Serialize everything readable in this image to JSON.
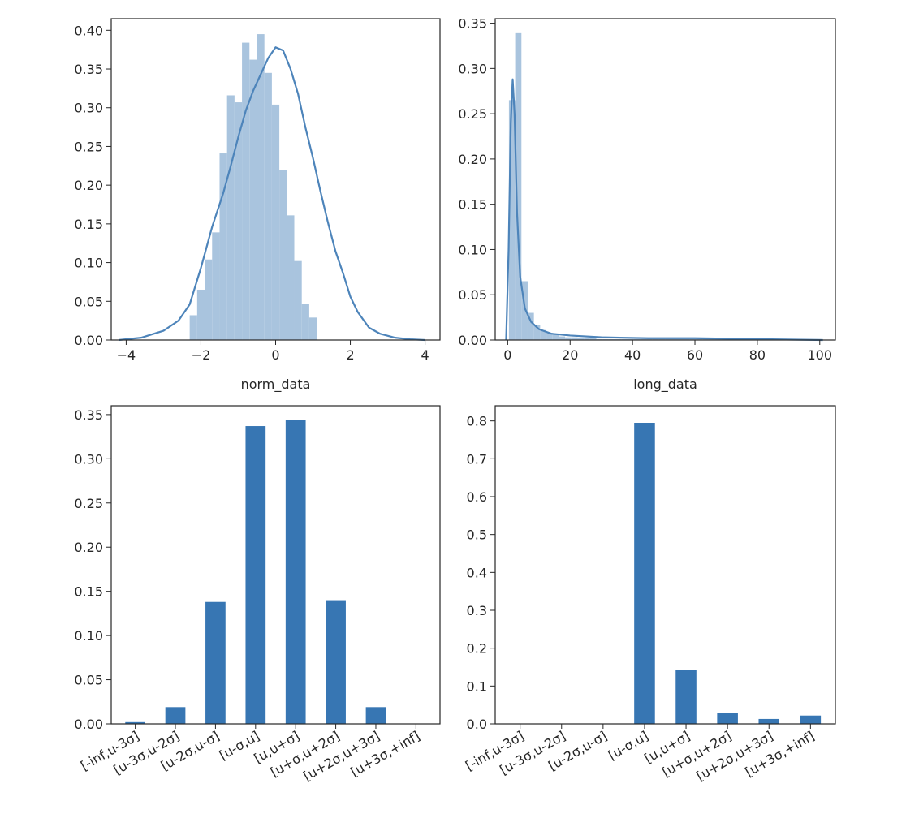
{
  "chart_data": [
    {
      "type": "histogram",
      "xlabel": "norm_data",
      "ylabel": "",
      "title": "",
      "xlim": [
        -4.4,
        4.4
      ],
      "ylim": [
        0,
        0.415
      ],
      "xticks": [
        -4,
        -2,
        0,
        2,
        4
      ],
      "xtick_labels": [
        "−4",
        "−2",
        "0",
        "2",
        "4"
      ],
      "yticks": [
        0,
        0.05,
        0.1,
        0.15,
        0.2,
        0.25,
        0.3,
        0.35,
        0.4
      ],
      "ytick_labels": [
        "0.00",
        "0.05",
        "0.10",
        "0.15",
        "0.20",
        "0.25",
        "0.30",
        "0.35",
        "0.40"
      ],
      "bins": {
        "start": -2.3,
        "width": 0.2,
        "values": [
          0.032,
          0.065,
          0.104,
          0.139,
          0.241,
          0.316,
          0.307,
          0.384,
          0.362,
          0.395,
          0.345,
          0.304,
          0.22,
          0.161,
          0.102,
          0.047,
          0.029
        ]
      },
      "kde": {
        "x": [
          -4.2,
          -3.6,
          -3.0,
          -2.6,
          -2.3,
          -2.0,
          -1.7,
          -1.4,
          -1.2,
          -1.0,
          -0.8,
          -0.6,
          -0.4,
          -0.2,
          0.0,
          0.2,
          0.4,
          0.6,
          0.8,
          1.0,
          1.2,
          1.4,
          1.6,
          1.8,
          2.0,
          2.2,
          2.5,
          2.8,
          3.2,
          3.6,
          4.0
        ],
        "y": [
          0.0,
          0.003,
          0.012,
          0.025,
          0.046,
          0.093,
          0.146,
          0.19,
          0.225,
          0.262,
          0.296,
          0.322,
          0.343,
          0.364,
          0.378,
          0.374,
          0.35,
          0.318,
          0.274,
          0.235,
          0.192,
          0.152,
          0.115,
          0.087,
          0.056,
          0.036,
          0.016,
          0.008,
          0.003,
          0.001,
          0.0
        ]
      }
    },
    {
      "type": "histogram",
      "xlabel": "long_data",
      "ylabel": "",
      "title": "",
      "xlim": [
        -4,
        105
      ],
      "ylim": [
        0,
        0.355
      ],
      "xticks": [
        0,
        20,
        40,
        60,
        80,
        100
      ],
      "xtick_labels": [
        "0",
        "20",
        "40",
        "60",
        "80",
        "100"
      ],
      "yticks": [
        0,
        0.05,
        0.1,
        0.15,
        0.2,
        0.25,
        0.3,
        0.35
      ],
      "ytick_labels": [
        "0.00",
        "0.05",
        "0.10",
        "0.15",
        "0.20",
        "0.25",
        "0.30",
        "0.35"
      ],
      "bins": {
        "start": 0.4,
        "width": 2.0,
        "values": [
          0.265,
          0.339,
          0.065,
          0.03,
          0.017,
          0.011,
          0.008,
          0.006,
          0.004,
          0.003,
          0.003,
          0.002,
          0.002,
          0.002,
          0.001,
          0.001,
          0.001,
          0.001,
          0.001,
          0.001,
          0.001,
          0.001,
          0.001,
          0.001,
          0.001,
          0.001,
          0.001,
          0.001,
          0.001,
          0.001,
          0.001,
          0.001,
          0.001,
          0.001,
          0.001,
          0.001,
          0.001,
          0.001,
          0.001,
          0.001,
          0.001,
          0.001,
          0.001,
          0.001,
          0.001,
          0.001,
          0.001,
          0.001,
          0.001,
          0.001
        ]
      },
      "kde": {
        "x": [
          -0.5,
          0.3,
          1.0,
          1.6,
          2.2,
          3.0,
          4.0,
          5.5,
          7.5,
          10.0,
          14.0,
          20.0,
          30.0,
          45.0,
          60.0,
          80.0,
          101.0
        ],
        "y": [
          0.0,
          0.1,
          0.24,
          0.288,
          0.25,
          0.14,
          0.07,
          0.035,
          0.02,
          0.012,
          0.007,
          0.005,
          0.003,
          0.002,
          0.002,
          0.001,
          0.0
        ]
      }
    },
    {
      "type": "bar",
      "xlabel": "",
      "ylabel": "",
      "title": "",
      "ylim": [
        0,
        0.36
      ],
      "yticks": [
        0,
        0.05,
        0.1,
        0.15,
        0.2,
        0.25,
        0.3,
        0.35
      ],
      "ytick_labels": [
        "0.00",
        "0.05",
        "0.10",
        "0.15",
        "0.20",
        "0.25",
        "0.30",
        "0.35"
      ],
      "categories": [
        "[-inf,u-3σ]",
        "[u-3σ,u-2σ]",
        "[u-2σ,u-σ]",
        "[u-σ,u]",
        "[u,u+σ]",
        "[u+σ,u+2σ]",
        "[u+2σ,u+3σ]",
        "[u+3σ,+inf]"
      ],
      "values": [
        0.002,
        0.019,
        0.138,
        0.337,
        0.344,
        0.14,
        0.019,
        0.0
      ]
    },
    {
      "type": "bar",
      "xlabel": "",
      "ylabel": "",
      "title": "",
      "ylim": [
        0,
        0.84
      ],
      "yticks": [
        0,
        0.1,
        0.2,
        0.3,
        0.4,
        0.5,
        0.6,
        0.7,
        0.8
      ],
      "ytick_labels": [
        "0.0",
        "0.1",
        "0.2",
        "0.3",
        "0.4",
        "0.5",
        "0.6",
        "0.7",
        "0.8"
      ],
      "categories": [
        "[-inf,u-3σ]",
        "[u-3σ,u-2σ]",
        "[u-2σ,u-σ]",
        "[u-σ,u]",
        "[u,u+σ]",
        "[u+σ,u+2σ]",
        "[u+2σ,u+3σ]",
        "[u+3σ,+inf]"
      ],
      "values": [
        0.0,
        0.0,
        0.0,
        0.795,
        0.142,
        0.03,
        0.013,
        0.022
      ]
    }
  ],
  "colors": {
    "hist_fill": "#a9c4de",
    "kde_line": "#4d84ba",
    "bar_fill": "#3776b3",
    "axis": "#262626"
  }
}
